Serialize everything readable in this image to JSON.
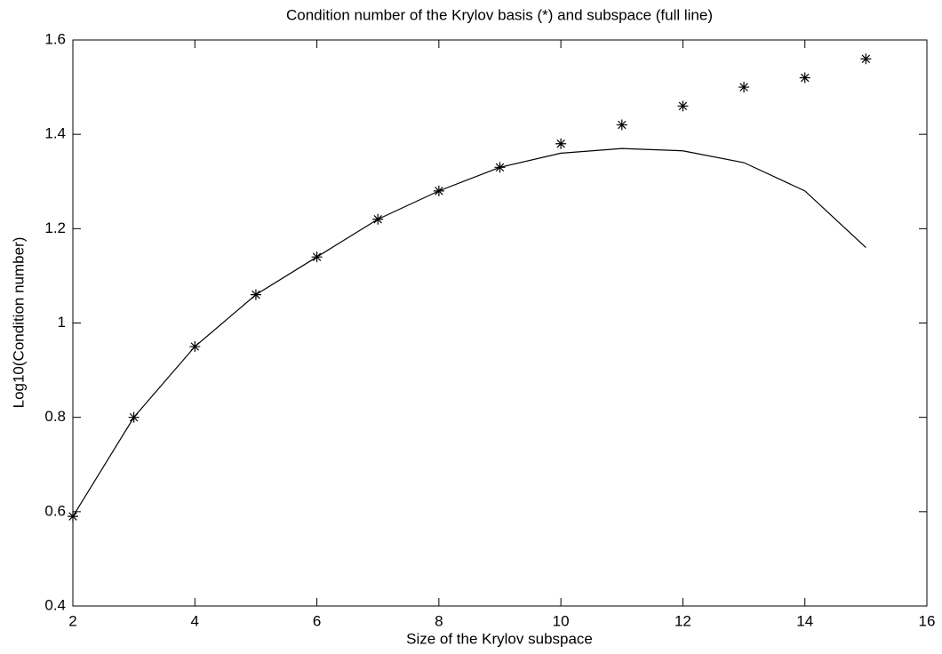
{
  "chart_data": {
    "type": "line",
    "title": "Condition number of the Krylov basis (*) and subspace (full line)",
    "x_label": "Size of the Krylov subspace",
    "y_label": "Log10(Condition number)",
    "x": [
      2,
      3,
      4,
      5,
      6,
      7,
      8,
      9,
      10,
      11,
      12,
      13,
      14,
      15
    ],
    "series": [
      {
        "color": "#000000",
        "mode": "markers",
        "values": [
          0.59,
          0.8,
          0.95,
          1.06,
          1.14,
          1.22,
          1.28,
          1.33,
          1.38,
          1.42,
          1.46,
          1.5,
          1.52,
          1.56
        ]
      },
      {
        "color": "#000000",
        "mode": "lines",
        "values": [
          0.59,
          0.8,
          0.95,
          1.06,
          1.14,
          1.22,
          1.28,
          1.33,
          1.36,
          1.37,
          1.365,
          1.34,
          1.28,
          1.16
        ]
      }
    ],
    "xlim": [
      2,
      16
    ],
    "xticks": [
      2,
      4,
      6,
      8,
      10,
      12,
      14,
      16
    ],
    "ylim": [
      0.4,
      1.6
    ],
    "yticks": [
      0.4,
      0.6,
      0.8,
      1,
      1.2,
      1.4,
      1.6
    ],
    "grid": false
  }
}
